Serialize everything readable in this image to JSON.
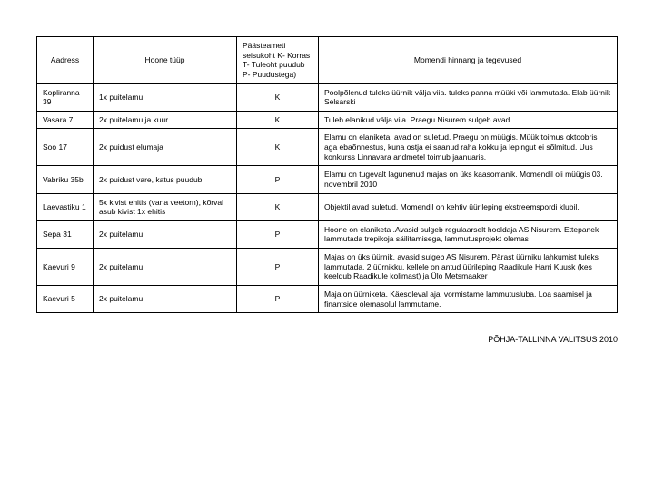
{
  "table": {
    "columns": [
      {
        "key": "address",
        "label": "Aadress",
        "class": "col-addr"
      },
      {
        "key": "type",
        "label": "Hoone tüüp",
        "class": "col-type"
      },
      {
        "key": "status",
        "label": "Päästeameti seisukoht\nK- Korras\nT- Tuleoht puudub\nP- Puudustega)",
        "class": "col-status"
      },
      {
        "key": "notes",
        "label": "Momendi hinnang ja tegevused",
        "class": "col-notes"
      }
    ],
    "rows": [
      {
        "address": "Kopliranna 39",
        "type": "1x puitelamu",
        "status": "K",
        "notes": "Poolpõlenud tuleks üürnik välja viia.\ntuleks panna müüki või lammutada. Elab üürnik Selsarski"
      },
      {
        "address": "Vasara 7",
        "type": "2x puitelamu ja kuur",
        "status": "K",
        "notes": "Tuleb elanikud välja viia. Praegu Nisurem sulgeb avad"
      },
      {
        "address": "Soo 17",
        "type": "2x puidust elumaja",
        "status": "K",
        "notes": "Elamu on elaniketa, avad on suletud. Praegu on müügis. Müük toimus oktoobris aga ebaõnnestus, kuna ostja ei saanud raha kokku ja lepingut ei sõlmitud. Uus konkurss Linnavara andmetel toimub jaanuaris."
      },
      {
        "address": "Vabriku 35b",
        "type": "2x puidust vare, katus puudub",
        "status": "P",
        "notes": "Elamu on tugevalt lagunenud majas on üks kaasomanik. Momendil oli müügis 03. novembril 2010"
      },
      {
        "address": "Laevastiku 1",
        "type": "5x kivist ehitis (vana veetorn), kõrval asub kivist 1x ehitis",
        "status": "K",
        "notes": "Objektil avad suletud. Momendil on kehtiv üürileping ekstreemspordi klubil."
      },
      {
        "address": "Sepa 31",
        "type": "2x puitelamu",
        "status": "P",
        "notes": "Hoone on  elaniketa .Avasid sulgeb regulaarselt hooldaja AS Nisurem. Ettepanek lammutada trepikoja säilitamisega, lammutusprojekt olemas"
      },
      {
        "address": "Kaevuri 9",
        "type": "2x puitelamu",
        "status": "P",
        "notes": "Majas on üks üürnik, avasid sulgeb AS Nisurem. Pärast üürniku lahkumist tuleks lammutada, 2 üürnikku, kellele on antud üürileping Raadikule Harri Kuusk (kes keeldub Raadikule kolimast) ja Ülo Metsmaaker"
      },
      {
        "address": "Kaevuri 5",
        "type": "2x puitelamu",
        "status": "P",
        "notes": "Maja on üürniketa. Käesoleval ajal vormistame lammutusluba. Loa saamisel ja finantside olemasolul lammutame."
      }
    ]
  },
  "footer": "PÕHJA-TALLINNA VALITSUS 2010"
}
